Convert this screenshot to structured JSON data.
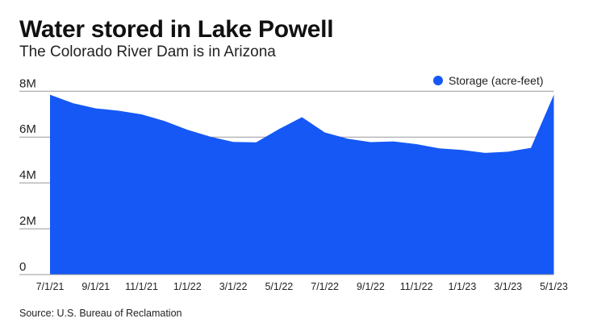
{
  "title": "Water stored in Lake Powell",
  "subtitle": "The Colorado River Dam is in Arizona",
  "source": "Source: U.S. Bureau of Reclamation",
  "colors": {
    "area": "#1558F5",
    "grid": "#999999"
  },
  "chart_data": {
    "type": "area",
    "title": "Water stored in Lake Powell",
    "subtitle": "The Colorado River Dam is in Arizona",
    "xlabel": "",
    "ylabel": "",
    "ylim": [
      0,
      8000000
    ],
    "yticks": [
      0,
      2000000,
      4000000,
      6000000,
      8000000
    ],
    "ytick_labels": [
      "0",
      "2M",
      "4M",
      "6M",
      "8M"
    ],
    "xtick_labels": [
      "7/1/21",
      "9/1/21",
      "11/1/21",
      "1/1/22",
      "3/1/22",
      "5/1/22",
      "7/1/22",
      "9/1/22",
      "11/1/22",
      "1/1/23",
      "3/1/23",
      "5/1/23"
    ],
    "grid": true,
    "legend_position": "top-right",
    "x": [
      "7/1/21",
      "8/1/21",
      "9/1/21",
      "10/1/21",
      "11/1/21",
      "12/1/21",
      "1/1/22",
      "2/1/22",
      "3/1/22",
      "4/1/22",
      "5/1/22",
      "6/1/22",
      "7/1/22",
      "8/1/22",
      "9/1/22",
      "10/1/22",
      "11/1/22",
      "12/1/22",
      "1/1/23",
      "2/1/23",
      "3/1/23",
      "4/1/23",
      "5/1/23"
    ],
    "series": [
      {
        "name": "Storage (acre-feet)",
        "values": [
          7850000,
          7480000,
          7250000,
          7150000,
          6990000,
          6700000,
          6320000,
          6020000,
          5790000,
          5770000,
          6350000,
          6870000,
          6200000,
          5930000,
          5780000,
          5810000,
          5690000,
          5510000,
          5440000,
          5310000,
          5360000,
          5530000,
          7850000
        ]
      }
    ]
  }
}
